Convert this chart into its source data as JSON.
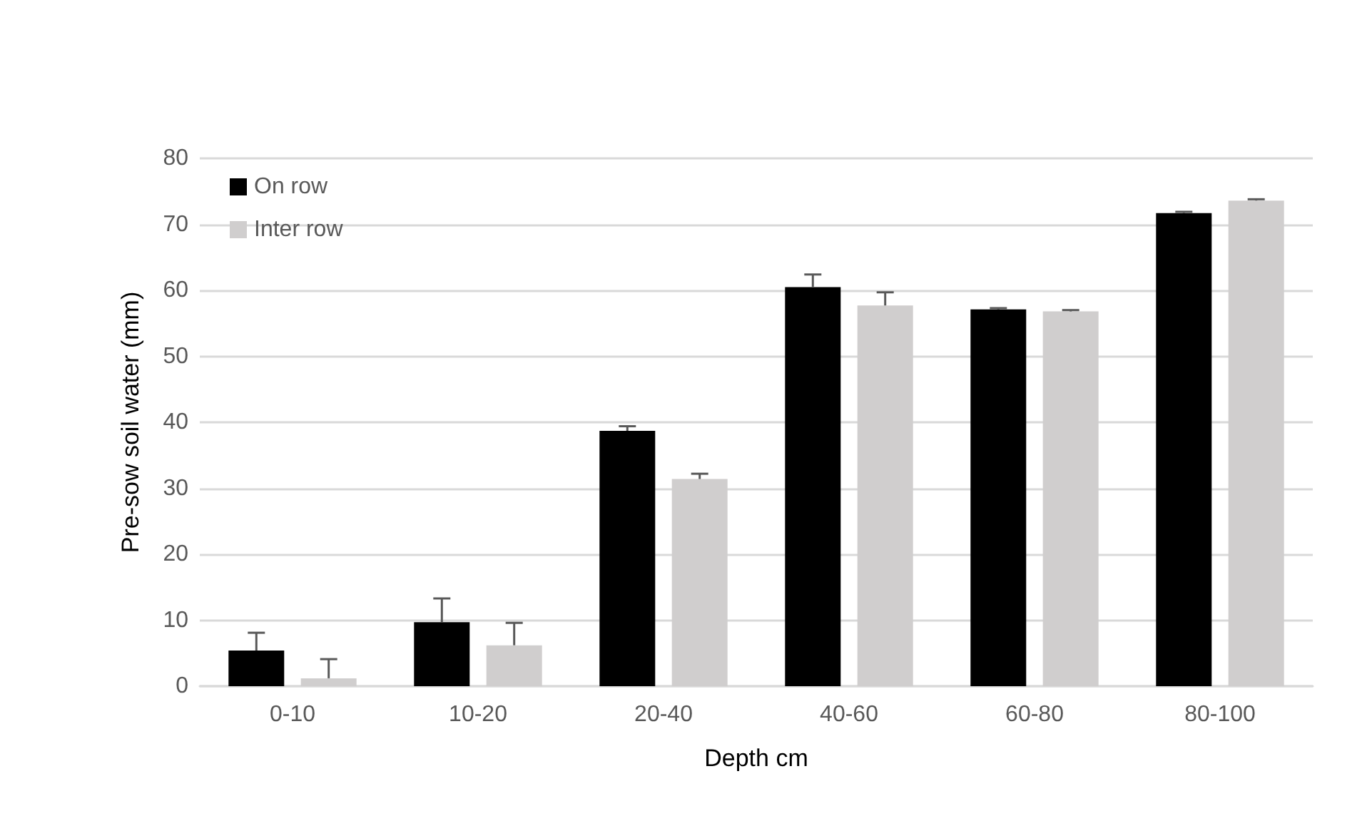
{
  "chart_data": {
    "type": "bar",
    "xlabel": "Depth cm",
    "ylabel": "Pre-sow soil water (mm)",
    "categories": [
      "0-10",
      "10-20",
      "20-40",
      "40-60",
      "60-80",
      "80-100"
    ],
    "series": [
      {
        "name": "On row",
        "color": "#000000",
        "values": [
          5.4,
          9.7,
          38.7,
          60.5,
          57.1,
          71.7
        ],
        "errors": [
          [
            5.4,
            8.1
          ],
          [
            9.7,
            13.3
          ],
          [
            38.7,
            39.4
          ],
          [
            60.5,
            62.4
          ],
          [
            57.1,
            57.3
          ],
          [
            71.7,
            71.9
          ]
        ]
      },
      {
        "name": "Inter row",
        "color": "#d0cece",
        "values": [
          1.2,
          6.2,
          31.4,
          57.7,
          56.8,
          73.6
        ],
        "errors": [
          [
            1.2,
            4.1
          ],
          [
            6.2,
            9.6
          ],
          [
            31.4,
            32.2
          ],
          [
            57.7,
            59.7
          ],
          [
            56.8,
            57.0
          ],
          [
            73.6,
            73.8
          ]
        ]
      }
    ],
    "ylim": [
      0,
      80
    ],
    "yticks": [
      0,
      10,
      20,
      30,
      40,
      50,
      60,
      70,
      80
    ],
    "grid": "y",
    "legend": "top left"
  }
}
